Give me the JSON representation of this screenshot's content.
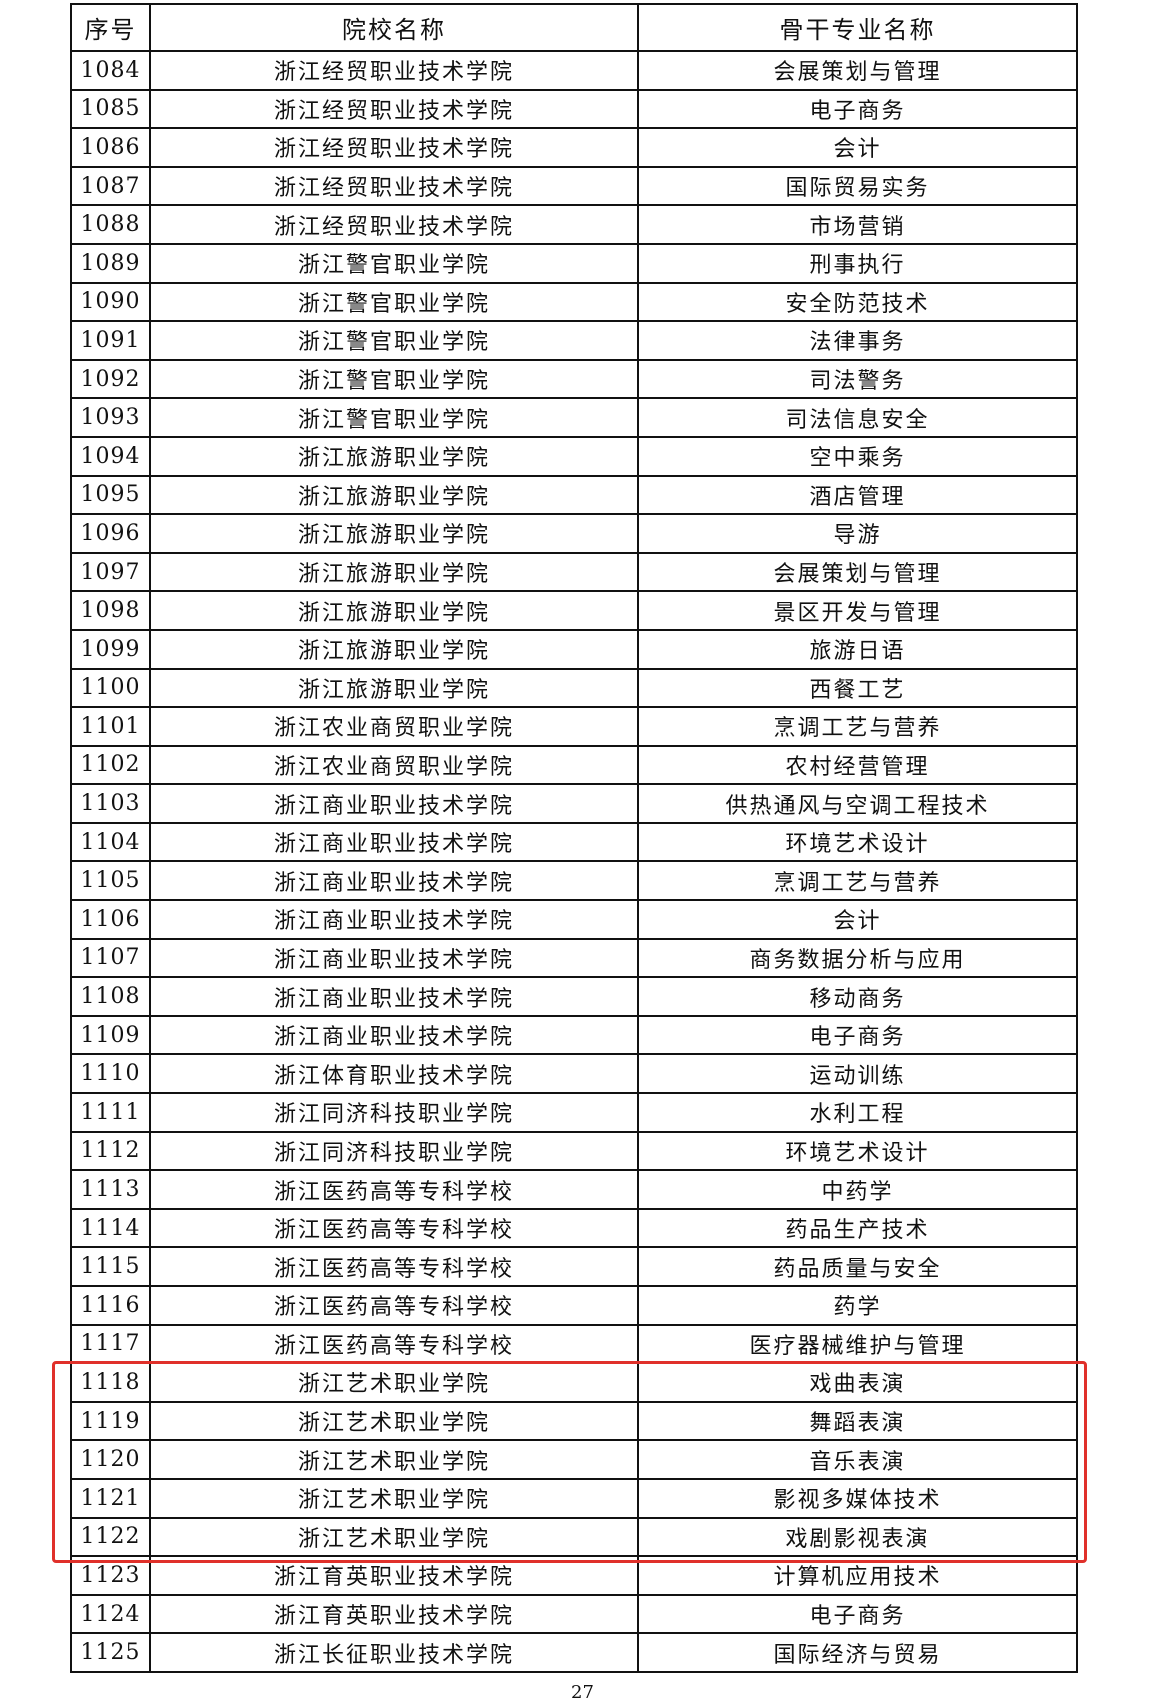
{
  "table": {
    "headers": [
      "序号",
      "院校名称",
      "骨干专业名称"
    ],
    "rows": [
      [
        "1084",
        "浙江经贸职业技术学院",
        "会展策划与管理"
      ],
      [
        "1085",
        "浙江经贸职业技术学院",
        "电子商务"
      ],
      [
        "1086",
        "浙江经贸职业技术学院",
        "会计"
      ],
      [
        "1087",
        "浙江经贸职业技术学院",
        "国际贸易实务"
      ],
      [
        "1088",
        "浙江经贸职业技术学院",
        "市场营销"
      ],
      [
        "1089",
        "浙江警官职业学院",
        "刑事执行"
      ],
      [
        "1090",
        "浙江警官职业学院",
        "安全防范技术"
      ],
      [
        "1091",
        "浙江警官职业学院",
        "法律事务"
      ],
      [
        "1092",
        "浙江警官职业学院",
        "司法警务"
      ],
      [
        "1093",
        "浙江警官职业学院",
        "司法信息安全"
      ],
      [
        "1094",
        "浙江旅游职业学院",
        "空中乘务"
      ],
      [
        "1095",
        "浙江旅游职业学院",
        "酒店管理"
      ],
      [
        "1096",
        "浙江旅游职业学院",
        "导游"
      ],
      [
        "1097",
        "浙江旅游职业学院",
        "会展策划与管理"
      ],
      [
        "1098",
        "浙江旅游职业学院",
        "景区开发与管理"
      ],
      [
        "1099",
        "浙江旅游职业学院",
        "旅游日语"
      ],
      [
        "1100",
        "浙江旅游职业学院",
        "西餐工艺"
      ],
      [
        "1101",
        "浙江农业商贸职业学院",
        "烹调工艺与营养"
      ],
      [
        "1102",
        "浙江农业商贸职业学院",
        "农村经营管理"
      ],
      [
        "1103",
        "浙江商业职业技术学院",
        "供热通风与空调工程技术"
      ],
      [
        "1104",
        "浙江商业职业技术学院",
        "环境艺术设计"
      ],
      [
        "1105",
        "浙江商业职业技术学院",
        "烹调工艺与营养"
      ],
      [
        "1106",
        "浙江商业职业技术学院",
        "会计"
      ],
      [
        "1107",
        "浙江商业职业技术学院",
        "商务数据分析与应用"
      ],
      [
        "1108",
        "浙江商业职业技术学院",
        "移动商务"
      ],
      [
        "1109",
        "浙江商业职业技术学院",
        "电子商务"
      ],
      [
        "1110",
        "浙江体育职业技术学院",
        "运动训练"
      ],
      [
        "1111",
        "浙江同济科技职业学院",
        "水利工程"
      ],
      [
        "1112",
        "浙江同济科技职业学院",
        "环境艺术设计"
      ],
      [
        "1113",
        "浙江医药高等专科学校",
        "中药学"
      ],
      [
        "1114",
        "浙江医药高等专科学校",
        "药品生产技术"
      ],
      [
        "1115",
        "浙江医药高等专科学校",
        "药品质量与安全"
      ],
      [
        "1116",
        "浙江医药高等专科学校",
        "药学"
      ],
      [
        "1117",
        "浙江医药高等专科学校",
        "医疗器械维护与管理"
      ],
      [
        "1118",
        "浙江艺术职业学院",
        "戏曲表演"
      ],
      [
        "1119",
        "浙江艺术职业学院",
        "舞蹈表演"
      ],
      [
        "1120",
        "浙江艺术职业学院",
        "音乐表演"
      ],
      [
        "1121",
        "浙江艺术职业学院",
        "影视多媒体技术"
      ],
      [
        "1122",
        "浙江艺术职业学院",
        "戏剧影视表演"
      ],
      [
        "1123",
        "浙江育英职业技术学院",
        "计算机应用技术"
      ],
      [
        "1124",
        "浙江育英职业技术学院",
        "电子商务"
      ],
      [
        "1125",
        "浙江长征职业技术学院",
        "国际经济与贸易"
      ]
    ]
  },
  "highlight_color": "#e0302a",
  "page_number": "27"
}
